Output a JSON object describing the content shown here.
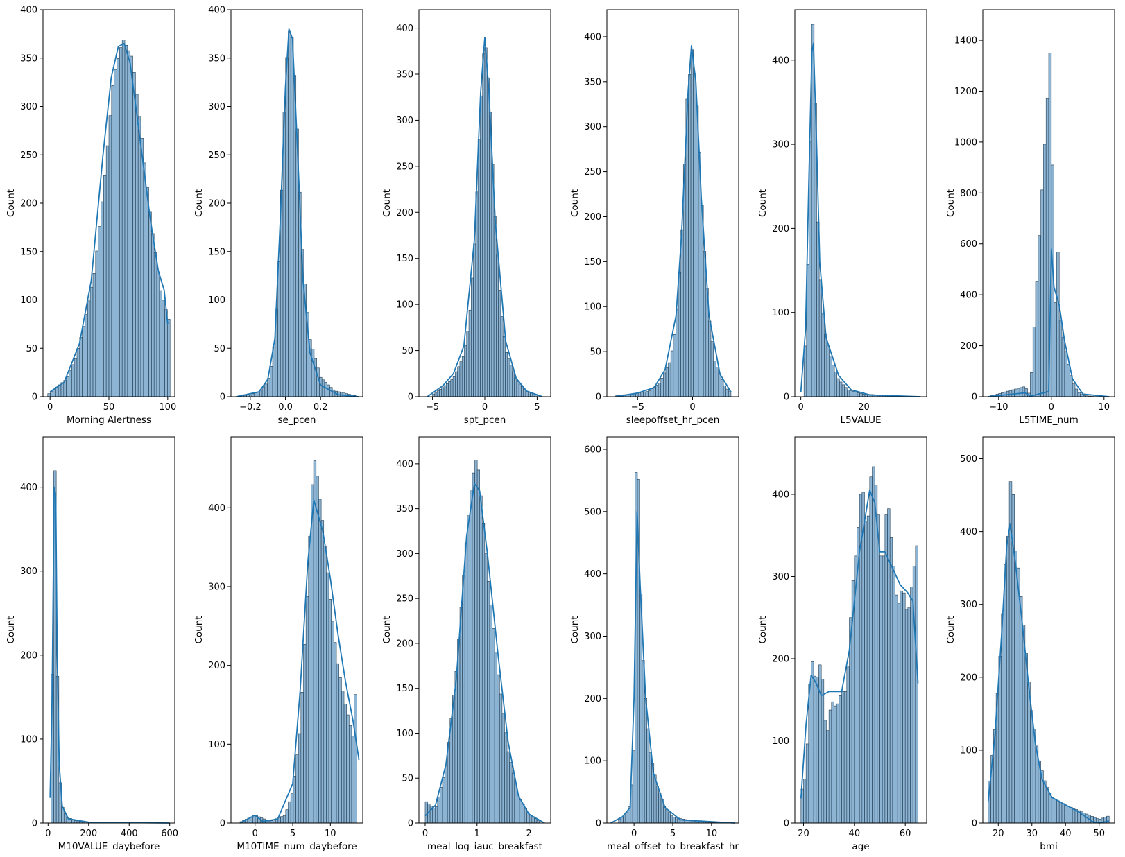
{
  "figure": {
    "layout": "2x6 grid of histograms with KDE curves",
    "colors": {
      "bar_fill": "#7aa7cb",
      "bar_edge": "#1f3d54",
      "kde": "#1f77b4"
    }
  },
  "chart_data": [
    {
      "type": "bar",
      "xlabel": "Morning Alertness",
      "ylabel": "Count",
      "xlim": [
        -6,
        106
      ],
      "ylim": [
        0,
        400
      ],
      "xticks": [
        0,
        50,
        100
      ],
      "yticks": [
        0,
        50,
        100,
        150,
        200,
        250,
        300,
        350,
        400
      ],
      "x": [
        -2,
        6,
        14,
        22,
        30,
        38,
        46,
        54,
        62,
        70,
        78,
        86,
        94,
        102
      ],
      "y": [
        2,
        10,
        18,
        40,
        80,
        130,
        220,
        330,
        370,
        350,
        270,
        180,
        110,
        75
      ],
      "kde": [
        [
          0,
          5
        ],
        [
          12,
          15
        ],
        [
          25,
          55
        ],
        [
          35,
          120
        ],
        [
          45,
          250
        ],
        [
          52,
          330
        ],
        [
          58,
          362
        ],
        [
          63,
          365
        ],
        [
          68,
          345
        ],
        [
          75,
          280
        ],
        [
          85,
          185
        ],
        [
          92,
          130
        ],
        [
          97,
          110
        ],
        [
          100,
          75
        ]
      ]
    },
    {
      "type": "bar",
      "xlabel": "se_pcen",
      "ylabel": "Count",
      "xlim": [
        -0.31,
        0.44
      ],
      "ylim": [
        0,
        400
      ],
      "xticks": [
        -0.2,
        0.0,
        0.2
      ],
      "xticklabels": [
        "−0.2",
        "0.0",
        "0.2"
      ],
      "yticks": [
        0,
        50,
        100,
        150,
        200,
        250,
        300,
        350,
        400
      ],
      "x": [
        -0.28,
        -0.2,
        -0.15,
        -0.1,
        -0.07,
        -0.04,
        -0.02,
        0.0,
        0.02,
        0.04,
        0.06,
        0.08,
        0.1,
        0.14,
        0.2,
        0.28,
        0.4
      ],
      "y": [
        0,
        2,
        5,
        15,
        40,
        120,
        220,
        330,
        380,
        370,
        310,
        220,
        140,
        60,
        20,
        6,
        1
      ],
      "kde": [
        [
          -0.28,
          0
        ],
        [
          -0.15,
          5
        ],
        [
          -0.1,
          18
        ],
        [
          -0.06,
          60
        ],
        [
          -0.03,
          180
        ],
        [
          0.0,
          320
        ],
        [
          0.02,
          380
        ],
        [
          0.04,
          370
        ],
        [
          0.07,
          250
        ],
        [
          0.1,
          120
        ],
        [
          0.14,
          45
        ],
        [
          0.2,
          12
        ],
        [
          0.3,
          2
        ],
        [
          0.42,
          0
        ]
      ]
    },
    {
      "type": "bar",
      "xlabel": "spt_pcen",
      "ylabel": "Count",
      "xlim": [
        -6.3,
        6.3
      ],
      "ylim": [
        0,
        420
      ],
      "xticks": [
        -5,
        0,
        5
      ],
      "xticklabels": [
        "−5",
        "0",
        "5"
      ],
      "yticks": [
        0,
        50,
        100,
        150,
        200,
        250,
        300,
        350,
        400
      ],
      "x": [
        -5,
        -4,
        -3,
        -2,
        -1.5,
        -1,
        -0.5,
        0,
        0.5,
        1,
        1.5,
        2,
        3,
        4,
        5
      ],
      "y": [
        2,
        10,
        20,
        45,
        80,
        160,
        290,
        395,
        320,
        190,
        100,
        50,
        18,
        6,
        2
      ],
      "kde": [
        [
          -5.5,
          0
        ],
        [
          -4,
          12
        ],
        [
          -3,
          25
        ],
        [
          -2,
          55
        ],
        [
          -1,
          170
        ],
        [
          -0.4,
          330
        ],
        [
          0,
          390
        ],
        [
          0.4,
          330
        ],
        [
          1,
          190
        ],
        [
          2,
          60
        ],
        [
          3,
          20
        ],
        [
          4,
          6
        ],
        [
          5.5,
          0
        ]
      ]
    },
    {
      "type": "bar",
      "xlabel": "sleepoffset_hr_pcen",
      "ylabel": "Count",
      "xlim": [
        -7.8,
        4.2
      ],
      "ylim": [
        0,
        430
      ],
      "xticks": [
        -5,
        0
      ],
      "xticklabels": [
        "−5",
        "0"
      ],
      "yticks": [
        0,
        50,
        100,
        150,
        200,
        250,
        300,
        350,
        400
      ],
      "x": [
        -7,
        -5,
        -4,
        -3,
        -2,
        -1.5,
        -1,
        -0.5,
        0,
        0.5,
        1,
        1.5,
        2,
        3,
        3.5
      ],
      "y": [
        1,
        4,
        6,
        15,
        40,
        80,
        170,
        330,
        390,
        310,
        180,
        90,
        40,
        10,
        5
      ],
      "kde": [
        [
          -7,
          0
        ],
        [
          -5,
          4
        ],
        [
          -3.5,
          10
        ],
        [
          -2.5,
          30
        ],
        [
          -1.5,
          90
        ],
        [
          -1,
          180
        ],
        [
          -0.4,
          340
        ],
        [
          -0.1,
          390
        ],
        [
          0.3,
          350
        ],
        [
          0.8,
          220
        ],
        [
          1.5,
          90
        ],
        [
          2.5,
          25
        ],
        [
          3.5,
          5
        ]
      ]
    },
    {
      "type": "bar",
      "xlabel": "L5VALUE",
      "ylabel": "Count",
      "xlim": [
        -1.9,
        39.9
      ],
      "ylim": [
        0,
        460
      ],
      "xticks": [
        0,
        20
      ],
      "yticks": [
        0,
        100,
        200,
        300,
        400
      ],
      "x": [
        1,
        2,
        3,
        3.5,
        4,
        4.5,
        5,
        6,
        7,
        8,
        10,
        12,
        15,
        20,
        30,
        38
      ],
      "y": [
        20,
        120,
        300,
        430,
        450,
        380,
        250,
        150,
        100,
        70,
        40,
        20,
        8,
        3,
        1,
        0
      ],
      "kde": [
        [
          0,
          5
        ],
        [
          1.5,
          80
        ],
        [
          2.5,
          250
        ],
        [
          3.5,
          410
        ],
        [
          4,
          420
        ],
        [
          5,
          300
        ],
        [
          6,
          160
        ],
        [
          8,
          70
        ],
        [
          12,
          25
        ],
        [
          16,
          8
        ],
        [
          22,
          2
        ],
        [
          38,
          0
        ]
      ]
    },
    {
      "type": "bar",
      "xlabel": "L5TIME_num",
      "ylabel": "Count",
      "xlim": [
        -13,
        12
      ],
      "ylim": [
        0,
        1520
      ],
      "xticks": [
        -10,
        0,
        10
      ],
      "xticklabels": [
        "−10",
        "0",
        "10"
      ],
      "yticks": [
        0,
        200,
        400,
        600,
        800,
        1000,
        1200,
        1400
      ],
      "x": [
        -12,
        -5,
        -4,
        0,
        0.5,
        1,
        1.3,
        1.5,
        2,
        3,
        4,
        5,
        6,
        8,
        11
      ],
      "y": [
        0,
        40,
        5,
        1440,
        380,
        360,
        610,
        340,
        260,
        150,
        60,
        20,
        5,
        1,
        0
      ],
      "kde": [
        [
          -12,
          0
        ],
        [
          -5,
          15
        ],
        [
          -4,
          2
        ],
        [
          -0.5,
          20
        ],
        [
          0,
          580
        ],
        [
          0.5,
          430
        ],
        [
          1.5,
          360
        ],
        [
          2.5,
          220
        ],
        [
          4,
          70
        ],
        [
          6,
          10
        ],
        [
          11,
          0
        ]
      ]
    },
    {
      "type": "bar",
      "xlabel": "M10VALUE_daybefore",
      "ylabel": "Count",
      "xlim": [
        -25,
        625
      ],
      "ylim": [
        0,
        460
      ],
      "xticks": [
        0,
        200,
        400,
        600
      ],
      "yticks": [
        0,
        100,
        200,
        300,
        400
      ],
      "x": [
        15,
        25,
        32,
        38,
        45,
        55,
        70,
        90,
        130,
        200,
        600
      ],
      "y": [
        50,
        250,
        430,
        400,
        200,
        60,
        20,
        8,
        3,
        1,
        0
      ],
      "kde": [
        [
          10,
          30
        ],
        [
          20,
          150
        ],
        [
          30,
          400
        ],
        [
          38,
          390
        ],
        [
          45,
          200
        ],
        [
          55,
          70
        ],
        [
          70,
          20
        ],
        [
          100,
          5
        ],
        [
          200,
          1
        ],
        [
          600,
          0
        ]
      ]
    },
    {
      "type": "bar",
      "xlabel": "M10TIME_num_daybefore",
      "ylabel": "Count",
      "xlim": [
        -3.2,
        14.3
      ],
      "ylim": [
        0,
        490
      ],
      "xticks": [
        0,
        5,
        10
      ],
      "yticks": [
        0,
        100,
        200,
        300,
        400
      ],
      "x": [
        -2,
        0,
        2,
        4,
        5,
        6,
        7,
        7.5,
        8,
        8.5,
        9,
        10,
        11,
        12,
        13,
        13.5
      ],
      "y": [
        1,
        10,
        2,
        10,
        40,
        120,
        300,
        420,
        465,
        420,
        380,
        280,
        200,
        150,
        110,
        190
      ],
      "kde": [
        [
          -2,
          0
        ],
        [
          0,
          10
        ],
        [
          1,
          2
        ],
        [
          3,
          5
        ],
        [
          5,
          50
        ],
        [
          6,
          170
        ],
        [
          7,
          330
        ],
        [
          7.8,
          410
        ],
        [
          9,
          370
        ],
        [
          10,
          310
        ],
        [
          11,
          240
        ],
        [
          12,
          180
        ],
        [
          13,
          130
        ],
        [
          13.8,
          80
        ]
      ]
    },
    {
      "type": "bar",
      "xlabel": "meal_log_iauc_breakfast",
      "ylabel": "Count",
      "xlim": [
        -0.12,
        2.42
      ],
      "ylim": [
        0,
        430
      ],
      "xticks": [
        0,
        1,
        2
      ],
      "yticks": [
        0,
        50,
        100,
        150,
        200,
        250,
        300,
        350,
        400
      ],
      "x": [
        0,
        0.2,
        0.4,
        0.6,
        0.8,
        0.9,
        1.0,
        1.1,
        1.2,
        1.4,
        1.6,
        1.8,
        2.0,
        2.2
      ],
      "y": [
        25,
        15,
        60,
        170,
        320,
        380,
        410,
        350,
        280,
        170,
        80,
        30,
        10,
        2
      ],
      "kde": [
        [
          0,
          8
        ],
        [
          0.2,
          20
        ],
        [
          0.4,
          65
        ],
        [
          0.6,
          160
        ],
        [
          0.8,
          320
        ],
        [
          0.95,
          378
        ],
        [
          1.05,
          370
        ],
        [
          1.2,
          300
        ],
        [
          1.4,
          190
        ],
        [
          1.6,
          90
        ],
        [
          1.8,
          30
        ],
        [
          2.0,
          10
        ],
        [
          2.3,
          0
        ]
      ]
    },
    {
      "type": "bar",
      "xlabel": "meal_offset_to_breakfast_hr",
      "ylabel": "Count",
      "xlim": [
        -3.5,
        13.5
      ],
      "ylim": [
        0,
        620
      ],
      "xticks": [
        0,
        5,
        10
      ],
      "yticks": [
        0,
        100,
        200,
        300,
        400,
        500,
        600
      ],
      "x": [
        -2,
        -1,
        -0.5,
        0,
        0.3,
        0.6,
        1,
        1.5,
        2,
        3,
        4,
        5,
        8,
        12
      ],
      "y": [
        5,
        15,
        30,
        120,
        590,
        550,
        300,
        200,
        120,
        60,
        25,
        10,
        2,
        0
      ],
      "kde": [
        [
          -3,
          0
        ],
        [
          -1.5,
          10
        ],
        [
          -0.5,
          25
        ],
        [
          0,
          200
        ],
        [
          0.4,
          500
        ],
        [
          0.8,
          380
        ],
        [
          1.5,
          200
        ],
        [
          2.5,
          80
        ],
        [
          4,
          25
        ],
        [
          6,
          5
        ],
        [
          13,
          0
        ]
      ]
    },
    {
      "type": "bar",
      "xlabel": "age",
      "ylabel": "Count",
      "xlim": [
        16.6,
        68.4
      ],
      "ylim": [
        0,
        470
      ],
      "xticks": [
        20,
        40,
        60
      ],
      "yticks": [
        0,
        100,
        200,
        300,
        400
      ],
      "x": [
        19,
        21,
        23,
        25,
        27,
        29,
        31,
        33,
        35,
        37,
        39,
        41,
        43,
        45,
        47,
        49,
        51,
        53,
        55,
        57,
        59,
        61,
        63,
        65
      ],
      "y": [
        35,
        60,
        205,
        170,
        200,
        100,
        150,
        140,
        160,
        160,
        280,
        340,
        420,
        350,
        445,
        400,
        300,
        400,
        330,
        260,
        290,
        250,
        300,
        350
      ],
      "kde": [
        [
          19,
          30
        ],
        [
          21,
          120
        ],
        [
          23,
          180
        ],
        [
          25,
          170
        ],
        [
          27,
          155
        ],
        [
          30,
          160
        ],
        [
          35,
          160
        ],
        [
          38,
          210
        ],
        [
          42,
          330
        ],
        [
          46,
          405
        ],
        [
          48,
          390
        ],
        [
          50,
          330
        ],
        [
          52,
          330
        ],
        [
          55,
          310
        ],
        [
          58,
          290
        ],
        [
          61,
          280
        ],
        [
          63,
          270
        ],
        [
          65,
          170
        ]
      ]
    },
    {
      "type": "bar",
      "xlabel": "bmi",
      "ylabel": "Count",
      "xlim": [
        15.4,
        54.6
      ],
      "ylim": [
        0,
        530
      ],
      "xticks": [
        20,
        30,
        40,
        50
      ],
      "yticks": [
        0,
        100,
        200,
        300,
        400,
        500
      ],
      "x": [
        17,
        19,
        21,
        22,
        23,
        24,
        25,
        26,
        27,
        28,
        30,
        32,
        34,
        36,
        40,
        45,
        50,
        53
      ],
      "y": [
        40,
        130,
        260,
        350,
        400,
        505,
        380,
        350,
        300,
        250,
        150,
        90,
        55,
        35,
        25,
        15,
        5,
        10
      ],
      "kde": [
        [
          17,
          30
        ],
        [
          19,
          120
        ],
        [
          21,
          260
        ],
        [
          22.5,
          380
        ],
        [
          23.5,
          410
        ],
        [
          25,
          360
        ],
        [
          27,
          280
        ],
        [
          29,
          190
        ],
        [
          31,
          110
        ],
        [
          33,
          60
        ],
        [
          36,
          35
        ],
        [
          40,
          25
        ],
        [
          44,
          15
        ],
        [
          48,
          2
        ],
        [
          50,
          0
        ],
        [
          53,
          3
        ]
      ]
    }
  ]
}
